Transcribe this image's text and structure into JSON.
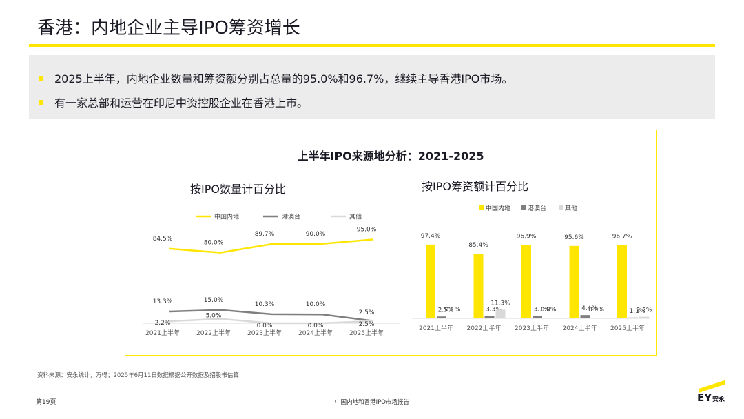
{
  "page": {
    "title": "香港：内地企业主导IPO筹资增长",
    "bullets": [
      "2025上半年，内地企业数量和筹资额分别占总量的95.0%和96.7%，继续主导香港IPO市场。",
      "有一家总部和运营在印尼中资控股企业在香港上市。"
    ],
    "source": "资料来源：安永统计，万得；2025年6月11日数据根据公开数据及招股书估算",
    "page_number": "第19页",
    "footer_title": "中国内地和香港IPO市场报告",
    "logo": {
      "ey": "EY",
      "cn": "安永"
    }
  },
  "colors": {
    "mainland": "#ffe600",
    "hk_macau_tw": "#7f7f7f",
    "other": "#d9d9d9",
    "accent": "#ffe600"
  },
  "chart_data": {
    "title": "上半年IPO来源地分析：2021-2025",
    "charts": [
      {
        "type": "line",
        "title": "按IPO数量计百分比",
        "categories": [
          "2021上半年",
          "2022上半年",
          "2023上半年",
          "2024上半年",
          "2025上半年"
        ],
        "series": [
          {
            "name": "中国内地",
            "values": [
              84.5,
              80.0,
              89.7,
              90.0,
              95.0
            ],
            "labels": [
              "84.5%",
              "80.0%",
              "89.7%",
              "90.0%",
              "95.0%"
            ]
          },
          {
            "name": "港澳台",
            "values": [
              13.3,
              15.0,
              10.3,
              10.0,
              2.5
            ],
            "labels": [
              "13.3%",
              "15.0%",
              "10.3%",
              "10.0%",
              "2.5%"
            ]
          },
          {
            "name": "其他",
            "values": [
              2.2,
              5.0,
              0.0,
              0.0,
              2.5
            ],
            "labels": [
              "2.2%",
              "5.0%",
              "0.0%",
              "0.0%",
              "2.5%"
            ]
          }
        ],
        "ylim": [
          0,
          100
        ],
        "legend": "top"
      },
      {
        "type": "bar",
        "title": "按IPO筹资额计百分比",
        "categories": [
          "2021上半年",
          "2022上半年",
          "2023上半年",
          "2024上半年",
          "2025上半年"
        ],
        "series": [
          {
            "name": "中国内地",
            "values": [
              97.4,
              85.4,
              96.9,
              95.6,
              96.7
            ],
            "labels": [
              "97.4%",
              "85.4%",
              "96.9%",
              "95.6%",
              "96.7%"
            ]
          },
          {
            "name": "港澳台",
            "values": [
              2.5,
              3.3,
              3.1,
              4.4,
              1.1
            ],
            "labels": [
              "2.5%",
              "3.3%",
              "3.1%",
              "4.4%",
              "1.1%"
            ]
          },
          {
            "name": "其他",
            "values": [
              0.1,
              11.3,
              0.0,
              0.0,
              2.2
            ],
            "labels": [
              "0.1%",
              "11.3%",
              "0.0%",
              "0.0%",
              "2.2%"
            ]
          }
        ],
        "ylim": [
          0,
          100
        ],
        "legend": "top"
      }
    ]
  }
}
